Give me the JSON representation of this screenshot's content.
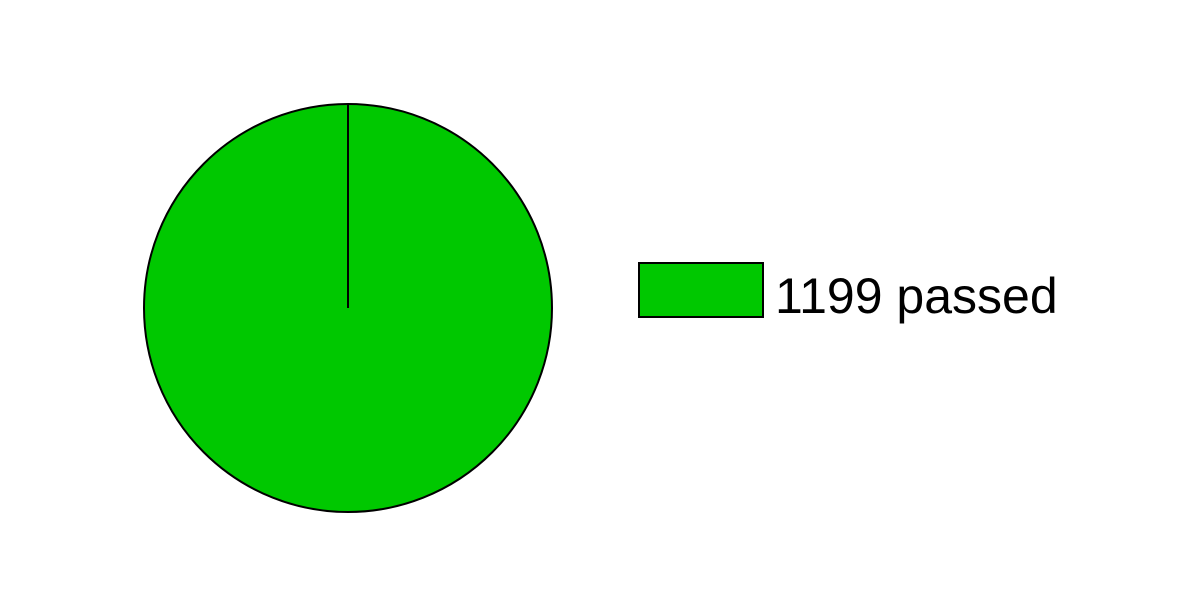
{
  "chart_data": {
    "type": "pie",
    "slices": [
      {
        "label": "1199 passed",
        "value": 1199,
        "color": "#00c800"
      }
    ],
    "legend_position": "right",
    "outline_color": "#000000"
  }
}
